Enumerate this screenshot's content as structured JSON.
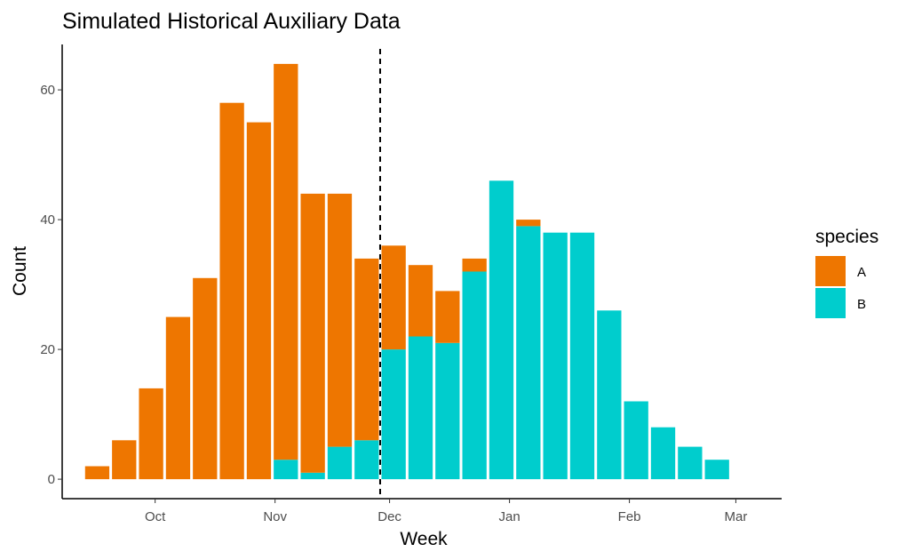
{
  "chart_data": {
    "type": "bar",
    "stacked": true,
    "title": "Simulated Historical Auxiliary Data",
    "xlabel": "Week",
    "ylabel": "Count",
    "ylim": [
      -3,
      67
    ],
    "yticks": [
      0,
      20,
      40,
      60
    ],
    "x_tick_labels": [
      "Oct",
      "Nov",
      "Dec",
      "Jan",
      "Feb",
      "Mar"
    ],
    "x_tick_weeks": [
      2.15,
      6.6,
      10.85,
      15.3,
      19.75,
      23.7
    ],
    "xlim": [
      -1.3,
      25.4
    ],
    "reference_line": {
      "week": 10.5,
      "style": "dashed",
      "color": "#000000"
    },
    "weeks": [
      0,
      1,
      2,
      3,
      4,
      5,
      6,
      7,
      8,
      9,
      10,
      11,
      12,
      13,
      14,
      15,
      16,
      17,
      18,
      19,
      20,
      21,
      22,
      23
    ],
    "series": [
      {
        "name": "A",
        "color": "#EE7600",
        "values": [
          2,
          6,
          14,
          25,
          31,
          58,
          55,
          61,
          43,
          39,
          28,
          16,
          11,
          8,
          2,
          0,
          1,
          0,
          0,
          0,
          0,
          0,
          0,
          0
        ]
      },
      {
        "name": "B",
        "color": "#00CDCD",
        "values": [
          0,
          0,
          0,
          0,
          0,
          0,
          0,
          3,
          1,
          5,
          6,
          20,
          22,
          21,
          32,
          46,
          39,
          38,
          38,
          26,
          12,
          8,
          5,
          3
        ]
      }
    ],
    "legend": {
      "title": "species",
      "position": "right"
    },
    "grid": false
  }
}
